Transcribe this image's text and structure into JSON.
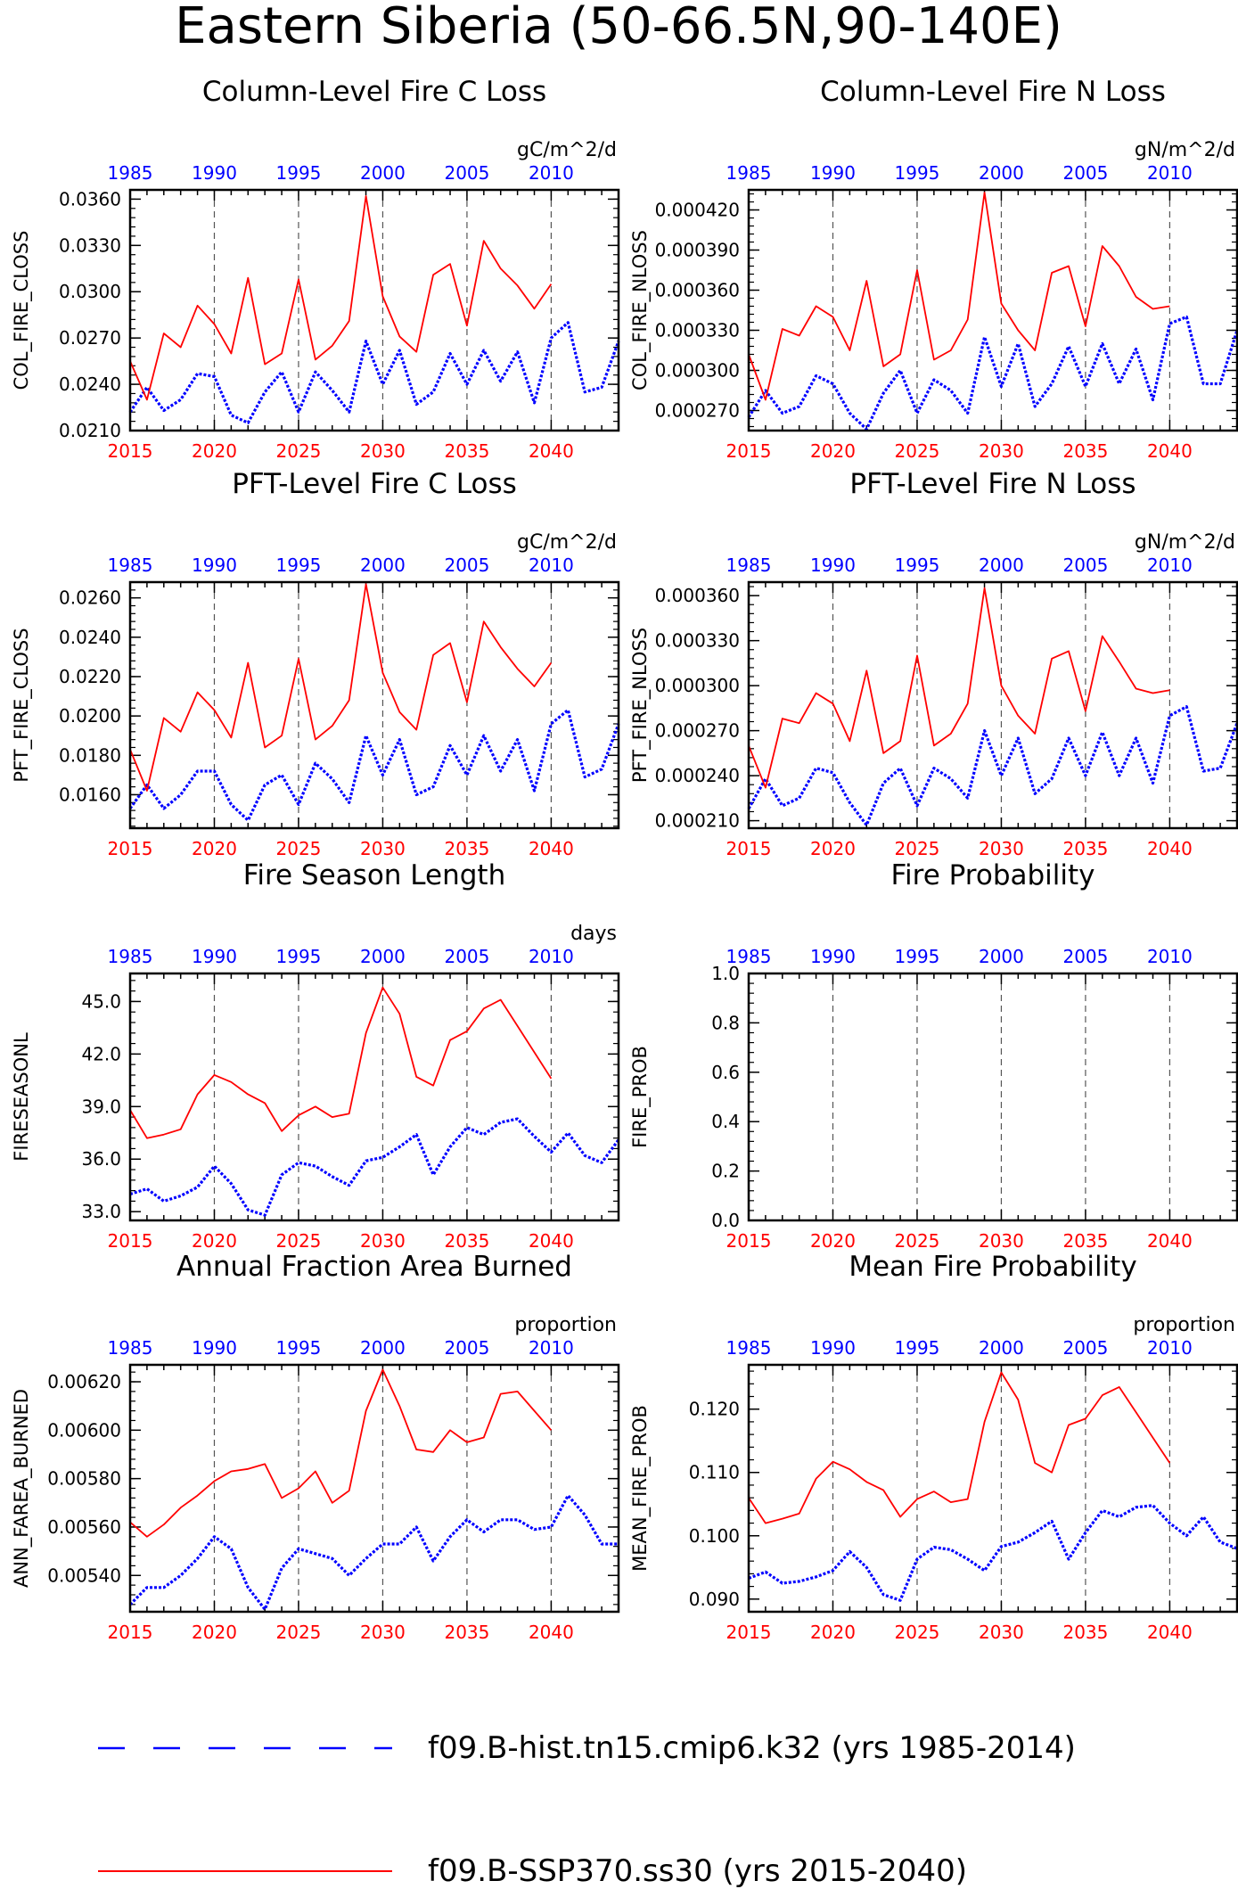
{
  "page_title": "Eastern Siberia (50-66.5N,90-140E)",
  "colors": {
    "hist": "#0000ff",
    "ssp": "#ff0000",
    "grid": "#555555",
    "axis": "#000000"
  },
  "legend": {
    "hist_label": "f09.B-hist.tn15.cmip6.k32 (yrs 1985-2014)",
    "ssp_label": "f09.B-SSP370.ss30 (yrs 2015-2040)"
  },
  "chart_data": [
    {
      "type": "line",
      "title": "Column-Level Fire C Loss",
      "ylabel": "COL_FIRE_CLOSS",
      "units": "gC/m^2/d",
      "ylim": [
        0.021,
        0.0366
      ],
      "yticks": [
        "0.0210",
        "0.0240",
        "0.0270",
        "0.0300",
        "0.0330",
        "0.0360"
      ],
      "bottom_x_ticks": [
        "2015",
        "2020",
        "2025",
        "2030",
        "2035",
        "2040"
      ],
      "top_x_ticks": [
        "1985",
        "1990",
        "1995",
        "2000",
        "2005",
        "2010"
      ],
      "grid": "vertical dashed at 5-year ticks",
      "series": [
        {
          "name": "f09.B-hist.tn15.cmip6.k32 (yrs 1985-2014)",
          "x_start": 1985,
          "values": [
            0.0222,
            0.0238,
            0.0223,
            0.023,
            0.0247,
            0.0245,
            0.022,
            0.0215,
            0.0235,
            0.0248,
            0.0222,
            0.0248,
            0.0236,
            0.0222,
            0.0268,
            0.024,
            0.0262,
            0.0227,
            0.0235,
            0.026,
            0.024,
            0.0262,
            0.0242,
            0.0261,
            0.0228,
            0.027,
            0.028,
            0.0235,
            0.0238,
            0.0268
          ]
        },
        {
          "name": "f09.B-SSP370.ss30 (yrs 2015-2040)",
          "x_start": 2015,
          "values": [
            0.0255,
            0.023,
            0.0273,
            0.0264,
            0.0291,
            0.0279,
            0.026,
            0.0309,
            0.0253,
            0.026,
            0.0308,
            0.0256,
            0.0265,
            0.0281,
            0.0362,
            0.0297,
            0.0271,
            0.0261,
            0.0311,
            0.0318,
            0.0278,
            0.0333,
            0.0315,
            0.0304,
            0.0289,
            0.0305
          ]
        }
      ]
    },
    {
      "type": "line",
      "title": "Column-Level Fire N Loss",
      "ylabel": "COL_FIRE_NLOSS",
      "units": "gN/m^2/d",
      "ylim": [
        0.000255,
        0.000435
      ],
      "yticks": [
        "0.000270",
        "0.000300",
        "0.000330",
        "0.000360",
        "0.000390",
        "0.000420"
      ],
      "bottom_x_ticks": [
        "2015",
        "2020",
        "2025",
        "2030",
        "2035",
        "2040"
      ],
      "top_x_ticks": [
        "1985",
        "1990",
        "1995",
        "2000",
        "2005",
        "2010"
      ],
      "grid": "vertical dashed at 5-year ticks",
      "series": [
        {
          "name": "f09.B-hist.tn15.cmip6.k32 (yrs 1985-2014)",
          "x_start": 1985,
          "values": [
            0.000265,
            0.000285,
            0.000268,
            0.000273,
            0.000296,
            0.00029,
            0.000268,
            0.000256,
            0.000283,
            0.0003,
            0.000268,
            0.000293,
            0.000285,
            0.000268,
            0.000325,
            0.000288,
            0.00032,
            0.000273,
            0.00029,
            0.000318,
            0.000288,
            0.00032,
            0.00029,
            0.000316,
            0.000278,
            0.000335,
            0.00034,
            0.00029,
            0.00029,
            0.00033
          ]
        },
        {
          "name": "f09.B-SSP370.ss30 (yrs 2015-2040)",
          "x_start": 2015,
          "values": [
            0.000312,
            0.000278,
            0.000331,
            0.000326,
            0.000348,
            0.00034,
            0.000315,
            0.000367,
            0.000303,
            0.000312,
            0.000375,
            0.000308,
            0.000315,
            0.000338,
            0.000433,
            0.00035,
            0.00033,
            0.000315,
            0.000373,
            0.000378,
            0.000333,
            0.000393,
            0.000378,
            0.000355,
            0.000346,
            0.000348
          ]
        }
      ]
    },
    {
      "type": "line",
      "title": "PFT-Level Fire C Loss",
      "ylabel": "PFT_FIRE_CLOSS",
      "units": "gC/m^2/d",
      "ylim": [
        0.0143,
        0.0268
      ],
      "yticks": [
        "0.0160",
        "0.0180",
        "0.0200",
        "0.0220",
        "0.0240",
        "0.0260"
      ],
      "bottom_x_ticks": [
        "2015",
        "2020",
        "2025",
        "2030",
        "2035",
        "2040"
      ],
      "top_x_ticks": [
        "1985",
        "1990",
        "1995",
        "2000",
        "2005",
        "2010"
      ],
      "grid": "vertical dashed at 5-year ticks",
      "series": [
        {
          "name": "f09.B-hist.tn15.cmip6.k32 (yrs 1985-2014)",
          "x_start": 1985,
          "values": [
            0.0153,
            0.0165,
            0.0153,
            0.016,
            0.0172,
            0.0172,
            0.0155,
            0.0147,
            0.0165,
            0.017,
            0.0155,
            0.0176,
            0.0168,
            0.0156,
            0.019,
            0.017,
            0.0188,
            0.016,
            0.0164,
            0.0185,
            0.017,
            0.019,
            0.0172,
            0.0188,
            0.0162,
            0.0196,
            0.0203,
            0.0169,
            0.0173,
            0.0196
          ]
        },
        {
          "name": "f09.B-SSP370.ss30 (yrs 2015-2040)",
          "x_start": 2015,
          "values": [
            0.0183,
            0.0162,
            0.0199,
            0.0192,
            0.0212,
            0.0203,
            0.0189,
            0.0227,
            0.0184,
            0.019,
            0.0229,
            0.0188,
            0.0195,
            0.0208,
            0.0267,
            0.0222,
            0.0202,
            0.0193,
            0.0231,
            0.0237,
            0.0207,
            0.0248,
            0.0235,
            0.0224,
            0.0215,
            0.0227
          ]
        }
      ]
    },
    {
      "type": "line",
      "title": "PFT-Level Fire N Loss",
      "ylabel": "PFT_FIRE_NLOSS",
      "units": "gN/m^2/d",
      "ylim": [
        0.000205,
        0.000369
      ],
      "yticks": [
        "0.000210",
        "0.000240",
        "0.000270",
        "0.000300",
        "0.000330",
        "0.000360"
      ],
      "bottom_x_ticks": [
        "2015",
        "2020",
        "2025",
        "2030",
        "2035",
        "2040"
      ],
      "top_x_ticks": [
        "1985",
        "1990",
        "1995",
        "2000",
        "2005",
        "2010"
      ],
      "grid": "vertical dashed at 5-year ticks",
      "series": [
        {
          "name": "f09.B-hist.tn15.cmip6.k32 (yrs 1985-2014)",
          "x_start": 1985,
          "values": [
            0.000218,
            0.000238,
            0.00022,
            0.000225,
            0.000245,
            0.000242,
            0.000222,
            0.000207,
            0.000235,
            0.000245,
            0.00022,
            0.000245,
            0.000238,
            0.000225,
            0.00027,
            0.00024,
            0.000265,
            0.000228,
            0.000238,
            0.000265,
            0.00024,
            0.000269,
            0.00024,
            0.000265,
            0.000235,
            0.00028,
            0.000286,
            0.000243,
            0.000245,
            0.000275
          ]
        },
        {
          "name": "f09.B-SSP370.ss30 (yrs 2015-2040)",
          "x_start": 2015,
          "values": [
            0.00026,
            0.000232,
            0.000278,
            0.000275,
            0.000295,
            0.000288,
            0.000263,
            0.00031,
            0.000255,
            0.000263,
            0.00032,
            0.00026,
            0.000268,
            0.000288,
            0.000365,
            0.0003,
            0.00028,
            0.000268,
            0.000318,
            0.000323,
            0.000283,
            0.000333,
            0.000316,
            0.000298,
            0.000295,
            0.000297
          ]
        }
      ]
    },
    {
      "type": "line",
      "title": "Fire Season Length",
      "ylabel": "FIRESEASONL",
      "units": "days",
      "ylim": [
        32.5,
        46.6
      ],
      "yticks": [
        "33.0",
        "36.0",
        "39.0",
        "42.0",
        "45.0"
      ],
      "bottom_x_ticks": [
        "2015",
        "2020",
        "2025",
        "2030",
        "2035",
        "2040"
      ],
      "top_x_ticks": [
        "1985",
        "1990",
        "1995",
        "2000",
        "2005",
        "2010"
      ],
      "grid": "vertical dashed at 5-year ticks",
      "series": [
        {
          "name": "f09.B-hist.tn15.cmip6.k32 (yrs 1985-2014)",
          "x_start": 1985,
          "values": [
            34.0,
            34.3,
            33.6,
            33.9,
            34.4,
            35.6,
            34.6,
            33.1,
            32.8,
            35.1,
            35.8,
            35.6,
            35.0,
            34.5,
            35.9,
            36.1,
            36.7,
            37.4,
            35.1,
            36.7,
            37.8,
            37.4,
            38.1,
            38.3,
            37.3,
            36.4,
            37.5,
            36.2,
            35.8,
            37.1
          ]
        },
        {
          "name": "f09.B-SSP370.ss30 (yrs 2015-2040)",
          "x_start": 2015,
          "values": [
            38.8,
            37.2,
            37.4,
            37.7,
            39.7,
            40.8,
            40.4,
            39.7,
            39.2,
            37.6,
            38.5,
            39.0,
            38.4,
            38.6,
            43.2,
            45.8,
            44.3,
            40.7,
            40.2,
            42.8,
            43.3,
            44.6,
            45.1,
            43.6,
            42.1,
            40.6
          ]
        }
      ]
    },
    {
      "type": "line",
      "title": "Fire Probability",
      "ylabel": "FIRE_PROB",
      "units": "",
      "ylim": [
        0.0,
        1.0
      ],
      "yticks": [
        "0.0",
        "0.2",
        "0.4",
        "0.6",
        "0.8",
        "1.0"
      ],
      "bottom_x_ticks": [
        "2015",
        "2020",
        "2025",
        "2030",
        "2035",
        "2040"
      ],
      "top_x_ticks": [
        "1985",
        "1990",
        "1995",
        "2000",
        "2005",
        "2010"
      ],
      "grid": "vertical dashed at 5-year ticks",
      "series": []
    },
    {
      "type": "line",
      "title": "Annual Fraction Area Burned",
      "ylabel": "ANN_FAREA_BURNED",
      "units": "proportion",
      "ylim": [
        0.00525,
        0.00627
      ],
      "yticks": [
        "0.00540",
        "0.00560",
        "0.00580",
        "0.00600",
        "0.00620"
      ],
      "bottom_x_ticks": [
        "2015",
        "2020",
        "2025",
        "2030",
        "2035",
        "2040"
      ],
      "top_x_ticks": [
        "1985",
        "1990",
        "1995",
        "2000",
        "2005",
        "2010"
      ],
      "grid": "vertical dashed at 5-year ticks",
      "series": [
        {
          "name": "f09.B-hist.tn15.cmip6.k32 (yrs 1985-2014)",
          "x_start": 1985,
          "values": [
            0.00528,
            0.00535,
            0.00535,
            0.0054,
            0.00547,
            0.00556,
            0.00551,
            0.00535,
            0.00526,
            0.00543,
            0.00551,
            0.00549,
            0.00547,
            0.0054,
            0.00547,
            0.00553,
            0.00553,
            0.0056,
            0.00546,
            0.00556,
            0.00563,
            0.00558,
            0.00563,
            0.00563,
            0.00559,
            0.0056,
            0.00573,
            0.00565,
            0.00553,
            0.00553
          ]
        },
        {
          "name": "f09.B-SSP370.ss30 (yrs 2015-2040)",
          "x_start": 2015,
          "values": [
            0.00562,
            0.00556,
            0.00561,
            0.00568,
            0.00573,
            0.00579,
            0.00583,
            0.00584,
            0.00586,
            0.00572,
            0.00576,
            0.00583,
            0.0057,
            0.00575,
            0.00608,
            0.00625,
            0.0061,
            0.00592,
            0.00591,
            0.006,
            0.00595,
            0.00597,
            0.00615,
            0.00616,
            0.00608,
            0.006
          ]
        }
      ]
    },
    {
      "type": "line",
      "title": "Mean Fire Probability",
      "ylabel": "MEAN_FIRE_PROB",
      "units": "proportion",
      "ylim": [
        0.088,
        0.127
      ],
      "yticks": [
        "0.090",
        "0.100",
        "0.110",
        "0.120"
      ],
      "bottom_x_ticks": [
        "2015",
        "2020",
        "2025",
        "2030",
        "2035",
        "2040"
      ],
      "top_x_ticks": [
        "1985",
        "1990",
        "1995",
        "2000",
        "2005",
        "2010"
      ],
      "grid": "vertical dashed at 5-year ticks",
      "series": [
        {
          "name": "f09.B-hist.tn15.cmip6.k32 (yrs 1985-2014)",
          "x_start": 1985,
          "values": [
            0.0933,
            0.0943,
            0.0925,
            0.0928,
            0.0935,
            0.0945,
            0.0975,
            0.095,
            0.0907,
            0.0898,
            0.0963,
            0.0982,
            0.0978,
            0.0963,
            0.0945,
            0.0983,
            0.099,
            0.1005,
            0.1023,
            0.0963,
            0.1005,
            0.104,
            0.103,
            0.1045,
            0.1048,
            0.102,
            0.1,
            0.103,
            0.099,
            0.098
          ]
        },
        {
          "name": "f09.B-SSP370.ss30 (yrs 2015-2040)",
          "x_start": 2015,
          "values": [
            0.106,
            0.102,
            0.1027,
            0.1035,
            0.109,
            0.1117,
            0.1105,
            0.1085,
            0.1072,
            0.103,
            0.1058,
            0.107,
            0.1053,
            0.1058,
            0.118,
            0.1258,
            0.1215,
            0.1115,
            0.11,
            0.1175,
            0.1185,
            0.1222,
            0.1235,
            0.1195,
            0.1155,
            0.1115
          ]
        }
      ]
    }
  ]
}
